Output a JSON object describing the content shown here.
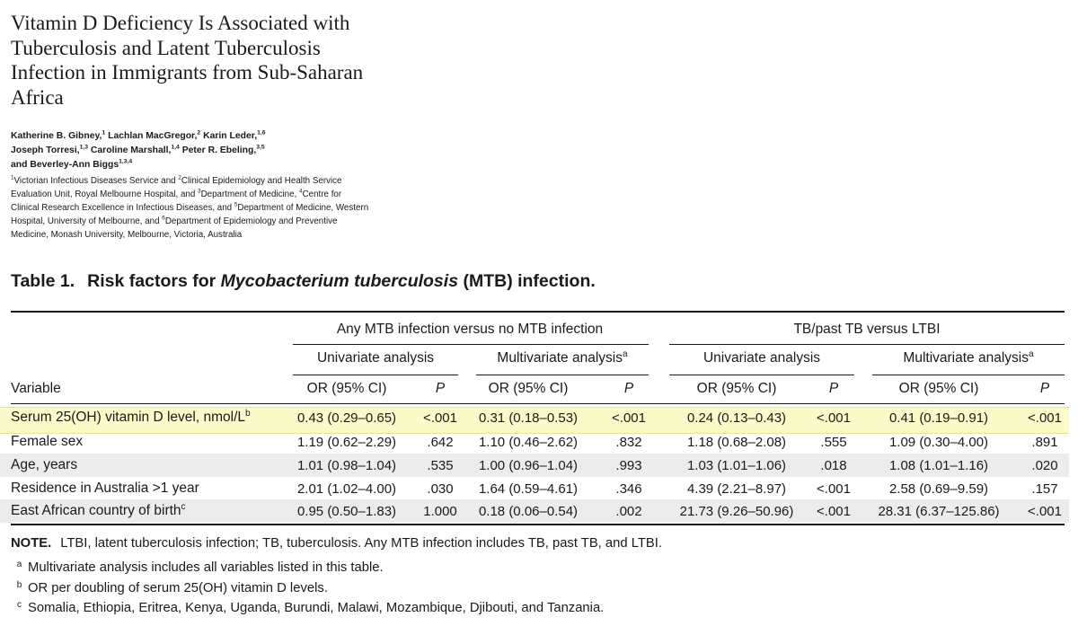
{
  "paper": {
    "title": "Vitamin D Deficiency Is Associated with Tuberculosis and Latent Tuberculosis Infection in Immigrants from Sub-Saharan Africa",
    "authors": [
      {
        "name": "Katherine B. Gibney,",
        "sup": "1"
      },
      {
        "name": "Lachlan MacGregor,",
        "sup": "2"
      },
      {
        "name": "Karin Leder,",
        "sup": "1,6"
      },
      {
        "name": "Joseph Torresi,",
        "sup": "1,3"
      },
      {
        "name": "Caroline Marshall,",
        "sup": "1,4"
      },
      {
        "name": "Peter R. Ebeling,",
        "sup": "3,5"
      },
      {
        "name": "and Beverley-Ann Biggs",
        "sup": "1,3,4"
      }
    ],
    "affiliations": [
      {
        "sup": "1",
        "text": "Victorian Infectious Diseases Service and "
      },
      {
        "sup": "2",
        "text": "Clinical Epidemiology and Health Service Evaluation Unit, Royal Melbourne Hospital, and "
      },
      {
        "sup": "3",
        "text": "Department of Medicine, "
      },
      {
        "sup": "4",
        "text": "Centre for Clinical Research Excellence in Infectious Diseases, and "
      },
      {
        "sup": "5",
        "text": "Department of Medicine, Western Hospital, University of Melbourne, and "
      },
      {
        "sup": "6",
        "text": "Department of Epidemiology and Preventive Medicine, Monash University, Melbourne, Victoria, Australia"
      }
    ]
  },
  "table": {
    "caption_number": "Table 1.",
    "caption_pre": "Risk factors for ",
    "caption_italic": "Mycobacterium tuberculosis",
    "caption_post": " (MTB) infection.",
    "group_headers": [
      "Any MTB infection versus no MTB infection",
      "TB/past TB versus LTBI"
    ],
    "sub_headers": [
      {
        "text": "Univariate analysis",
        "sup": ""
      },
      {
        "text": "Multivariate analysis",
        "sup": "a"
      },
      {
        "text": "Univariate analysis",
        "sup": ""
      },
      {
        "text": "Multivariate analysis",
        "sup": "a"
      }
    ],
    "variable_header": "Variable",
    "col_headers": [
      "OR (95% CI)",
      "P",
      "OR (95% CI)",
      "P",
      "OR (95% CI)",
      "P",
      "OR (95% CI)",
      "P"
    ],
    "highlight_color": "#fbfbc9",
    "highlight_border": "#e8e68a",
    "stripe_color": "#ececec",
    "rows": [
      {
        "label": "Serum 25(OH) vitamin D level, nmol/L",
        "sup": "b",
        "highlight": true,
        "stripe": false,
        "cells": [
          "0.43 (0.29–0.65)",
          "<.001",
          "0.31 (0.18–0.53)",
          "<.001",
          "0.24 (0.13–0.43)",
          "<.001",
          "0.41 (0.19–0.91)",
          "<.001"
        ]
      },
      {
        "label": "Female sex",
        "sup": "",
        "highlight": false,
        "stripe": false,
        "cells": [
          "1.19 (0.62–2.29)",
          ".642",
          "1.10 (0.46–2.62)",
          ".832",
          "1.18 (0.68–2.08)",
          ".555",
          "1.09 (0.30–4.00)",
          ".891"
        ]
      },
      {
        "label": "Age, years",
        "sup": "",
        "highlight": false,
        "stripe": true,
        "cells": [
          "1.01 (0.98–1.04)",
          ".535",
          "1.00 (0.96–1.04)",
          ".993",
          "1.03 (1.01–1.06)",
          ".018",
          "1.08 (1.01–1.16)",
          ".020"
        ]
      },
      {
        "label": "Residence in Australia >1 year",
        "sup": "",
        "highlight": false,
        "stripe": false,
        "cells": [
          "2.01 (1.02–4.00)",
          ".030",
          "1.64 (0.59–4.61)",
          ".346",
          "4.39 (2.21–8.97)",
          "<.001",
          "2.58 (0.69–9.59)",
          ".157"
        ]
      },
      {
        "label": "East African country of birth",
        "sup": "c",
        "highlight": false,
        "stripe": true,
        "cells": [
          "0.95 (0.50–1.83)",
          "1.000",
          "0.18 (0.06–0.54)",
          ".002",
          "21.73 (9.26–50.96)",
          "<.001",
          "28.31 (6.37–125.86)",
          "<.001"
        ]
      }
    ],
    "notes": [
      {
        "mark": "",
        "bold": "NOTE.",
        "text": "LTBI, latent tuberculosis infection; TB, tuberculosis. Any MTB infection includes TB, past TB, and LTBI."
      },
      {
        "mark": "a",
        "bold": "",
        "text": "Multivariate analysis includes all variables listed in this table."
      },
      {
        "mark": "b",
        "bold": "",
        "text": "OR per doubling of serum 25(OH) vitamin D levels."
      },
      {
        "mark": "c",
        "bold": "",
        "text": "Somalia, Ethiopia, Eritrea, Kenya, Uganda, Burundi, Malawi, Mozambique, Djibouti, and Tanzania."
      }
    ]
  }
}
